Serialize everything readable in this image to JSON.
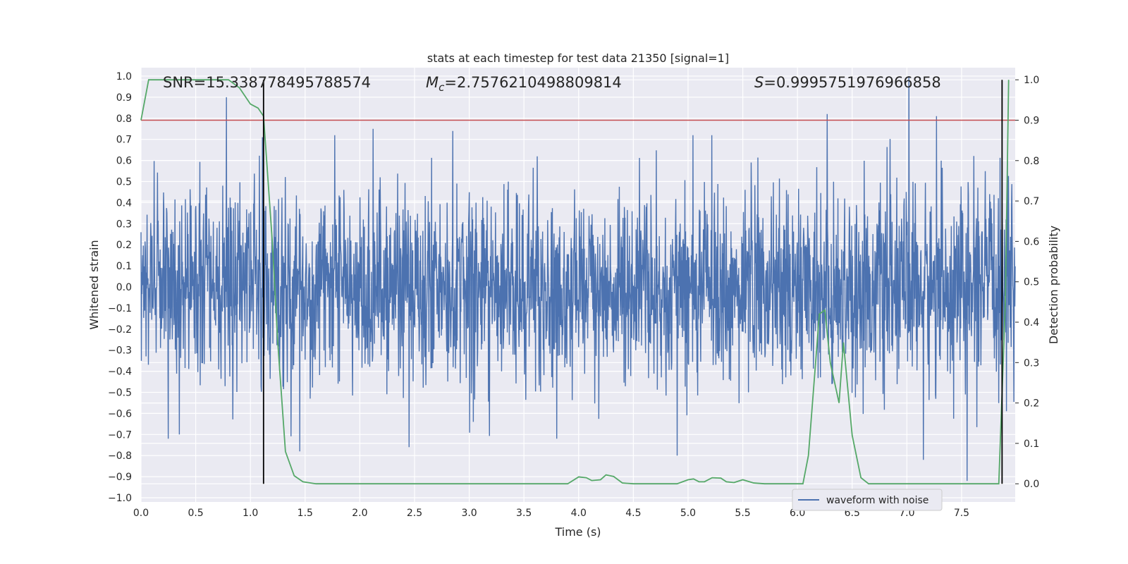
{
  "chart_data": {
    "type": "line",
    "title": "stats at each timestep for test data 21350 [signal=1]",
    "xlabel": "Time (s)",
    "ylabel_left": "Whitened strain",
    "ylabel_right": "Detection probability",
    "xlim": [
      0.0,
      7.99
    ],
    "ylim_left": [
      -1.02,
      1.04
    ],
    "ylim_right": [
      -0.045,
      1.03
    ],
    "x_ticks": [
      "0.0",
      "0.5",
      "1.0",
      "1.5",
      "2.0",
      "2.5",
      "3.0",
      "3.5",
      "4.0",
      "4.5",
      "5.0",
      "5.5",
      "6.0",
      "6.5",
      "7.0",
      "7.5"
    ],
    "y_left_ticks": [
      "1.0",
      "0.9",
      "0.8",
      "0.7",
      "0.6",
      "0.5",
      "0.4",
      "0.3",
      "0.2",
      "0.1",
      "0.0",
      "−0.1",
      "−0.2",
      "−0.3",
      "−0.4",
      "−0.5",
      "−0.6",
      "−0.7",
      "−0.8",
      "−0.9",
      "−1.0"
    ],
    "y_right_ticks": [
      "1.0",
      "0.9",
      "0.8",
      "0.7",
      "0.6",
      "0.5",
      "0.4",
      "0.3",
      "0.2",
      "0.1",
      "0.0"
    ],
    "grid": true,
    "legend_position": "lower-right",
    "annotations": {
      "snr": "SNR=15.338778495788574",
      "mc_symbol": "M",
      "mc_sub": "c",
      "mc_value": "=2.7576210498809814",
      "s_symbol": "S",
      "s_value": "=0.9995751976966858"
    },
    "threshold": 0.9,
    "markers_x": [
      1.12,
      7.87
    ],
    "series": [
      {
        "name": "waveform with noise",
        "color": "#4c72b0",
        "style": "dense noise",
        "envelope_typical": 0.4,
        "peaks": [
          {
            "x": 0.78,
            "y": 0.9
          },
          {
            "x": 1.11,
            "y": 0.71
          },
          {
            "x": 1.45,
            "y": -0.78
          },
          {
            "x": 2.12,
            "y": 0.75
          },
          {
            "x": 2.45,
            "y": -0.76
          },
          {
            "x": 2.85,
            "y": 0.74
          },
          {
            "x": 4.9,
            "y": -0.8
          },
          {
            "x": 6.27,
            "y": 0.82
          },
          {
            "x": 7.02,
            "y": 1.0
          },
          {
            "x": 7.15,
            "y": -0.82
          },
          {
            "x": 7.27,
            "y": 0.81
          },
          {
            "x": 7.55,
            "y": -0.92
          },
          {
            "x": 7.92,
            "y": 0.6
          },
          {
            "x": 0.35,
            "y": -0.7
          },
          {
            "x": 3.8,
            "y": -0.72
          }
        ]
      },
      {
        "name": "",
        "axis": "right",
        "color": "#55a868",
        "x": [
          0.0,
          0.07,
          0.2,
          0.5,
          0.8,
          0.9,
          1.0,
          1.07,
          1.12,
          1.2,
          1.25,
          1.32,
          1.4,
          1.48,
          1.6,
          2.0,
          2.5,
          3.0,
          3.5,
          3.9,
          4.0,
          4.07,
          4.12,
          4.2,
          4.25,
          4.32,
          4.4,
          4.5,
          4.9,
          5.0,
          5.05,
          5.1,
          5.15,
          5.22,
          5.3,
          5.35,
          5.42,
          5.5,
          5.6,
          5.7,
          5.9,
          6.05,
          6.1,
          6.2,
          6.25,
          6.3,
          6.38,
          6.42,
          6.5,
          6.58,
          6.65,
          6.75,
          7.0,
          7.5,
          7.84,
          7.9,
          7.93
        ],
        "y": [
          0.9,
          1.0,
          1.0,
          1.0,
          1.0,
          0.98,
          0.94,
          0.93,
          0.91,
          0.6,
          0.35,
          0.08,
          0.02,
          0.005,
          0.0,
          0.0,
          0.0,
          0.0,
          0.0,
          0.0,
          0.017,
          0.015,
          0.008,
          0.01,
          0.022,
          0.018,
          0.002,
          0.0,
          0.0,
          0.01,
          0.012,
          0.005,
          0.005,
          0.015,
          0.014,
          0.005,
          0.003,
          0.01,
          0.002,
          0.0,
          0.0,
          0.0,
          0.07,
          0.42,
          0.43,
          0.3,
          0.2,
          0.35,
          0.12,
          0.015,
          0.0,
          0.0,
          0.0,
          0.0,
          0.0,
          0.45,
          1.0
        ]
      },
      {
        "name": "",
        "axis": "right",
        "color": "#c44e52",
        "x": [
          0.0,
          7.99
        ],
        "y": [
          0.9,
          0.9
        ]
      }
    ]
  }
}
